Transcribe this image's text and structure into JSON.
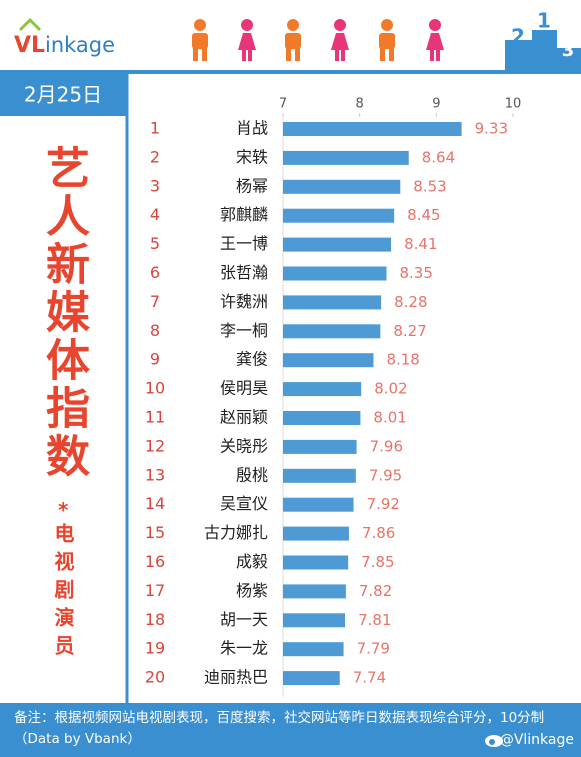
{
  "header": {
    "logo_part1": "VL",
    "logo_part2": "inkage",
    "podium": [
      2,
      1,
      3
    ],
    "date": "2月25日"
  },
  "side_title": {
    "main": "艺人新媒体指数",
    "star": "*",
    "sub": "电视剧演员"
  },
  "chart_data": {
    "type": "bar",
    "orientation": "horizontal",
    "ranks": [
      1,
      2,
      3,
      4,
      5,
      6,
      7,
      8,
      9,
      10,
      11,
      12,
      13,
      14,
      15,
      16,
      17,
      18,
      19,
      20
    ],
    "categories": [
      "肖战",
      "宋轶",
      "杨幂",
      "郭麒麟",
      "王一博",
      "张哲瀚",
      "许魏洲",
      "李一桐",
      "龚俊",
      "侯明昊",
      "赵丽颖",
      "关晓彤",
      "殷桃",
      "吴宣仪",
      "古力娜扎",
      "成毅",
      "杨紫",
      "胡一天",
      "朱一龙",
      "迪丽热巴"
    ],
    "values": [
      9.33,
      8.64,
      8.53,
      8.45,
      8.41,
      8.35,
      8.28,
      8.27,
      8.18,
      8.02,
      8.01,
      7.96,
      7.95,
      7.92,
      7.86,
      7.85,
      7.82,
      7.81,
      7.79,
      7.74
    ],
    "xlim": [
      7,
      10
    ],
    "xticks": [
      7,
      8,
      9,
      10
    ],
    "color": "#4d9ad4",
    "label_color": "#e8736b"
  },
  "footer": {
    "note": "备注：根据视频网站电视剧表现，百度搜索，社交网站等昨日数据表现综合评分，10分制（Data by Vbank）",
    "credit": "@Vlinkage"
  }
}
